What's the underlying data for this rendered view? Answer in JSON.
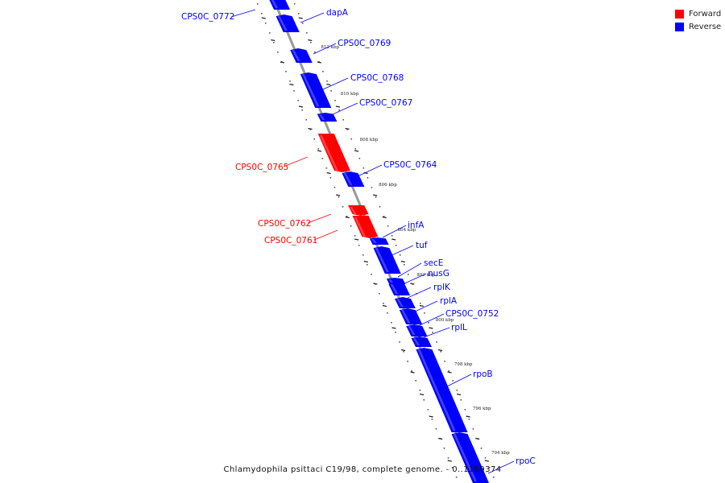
{
  "legend": {
    "items": [
      {
        "label": "Forward",
        "color": "#ff0000"
      },
      {
        "label": "Reverse",
        "color": "#0000ff"
      }
    ]
  },
  "caption": "Chlamydophila psittaci C19/98, complete genome. - 0..1169374",
  "colors": {
    "forward": "#ff0000",
    "reverse": "#0000ff",
    "backbone": "#999999"
  },
  "position_ticks": [
    {
      "label": "812 kbp"
    },
    {
      "label": "810 kbp"
    },
    {
      "label": "808 kbp"
    },
    {
      "label": "806 kbp"
    },
    {
      "label": "804 kbp"
    },
    {
      "label": "802 kbp"
    },
    {
      "label": "800 kbp"
    },
    {
      "label": "798 kbp"
    },
    {
      "label": "796 kbp"
    },
    {
      "label": "794 kbp"
    }
  ],
  "genes": [
    {
      "name": "CPS0C_0772",
      "strand": "reverse"
    },
    {
      "name": "dapA",
      "strand": "reverse"
    },
    {
      "name": "CPS0C_0769",
      "strand": "reverse"
    },
    {
      "name": "CPS0C_0768",
      "strand": "reverse"
    },
    {
      "name": "CPS0C_0767",
      "strand": "reverse"
    },
    {
      "name": "CPS0C_0765",
      "strand": "forward"
    },
    {
      "name": "CPS0C_0764",
      "strand": "reverse"
    },
    {
      "name": "CPS0C_0762",
      "strand": "forward"
    },
    {
      "name": "CPS0C_0761",
      "strand": "forward"
    },
    {
      "name": "infA",
      "strand": "reverse"
    },
    {
      "name": "tuf",
      "strand": "reverse"
    },
    {
      "name": "secE",
      "strand": "reverse"
    },
    {
      "name": "nusG",
      "strand": "reverse"
    },
    {
      "name": "rplK",
      "strand": "reverse"
    },
    {
      "name": "rplA",
      "strand": "reverse"
    },
    {
      "name": "CPS0C_0752",
      "strand": "reverse"
    },
    {
      "name": "rplL",
      "strand": "reverse"
    },
    {
      "name": "rpoB",
      "strand": "reverse"
    },
    {
      "name": "rpoC",
      "strand": "reverse"
    }
  ]
}
